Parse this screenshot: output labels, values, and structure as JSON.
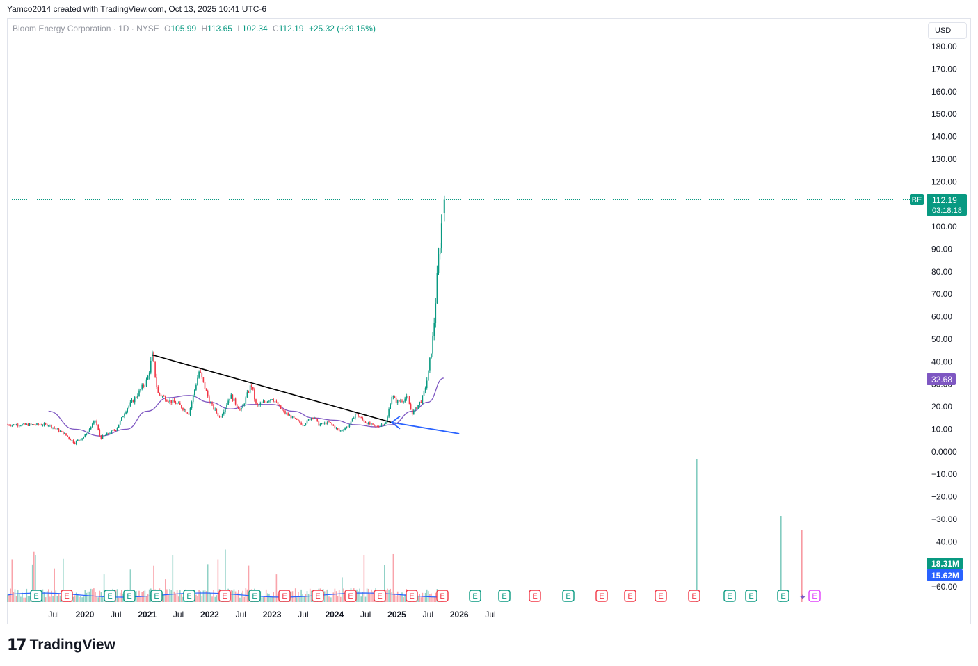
{
  "header": {
    "attribution": "Yamco2014 created with TradingView.com, Oct 13, 2025 10:41 UTC-6"
  },
  "legend": {
    "symbol_line": "Bloom Energy Corporation · 1D · NYSE",
    "o_label": "O",
    "o_value": "105.99",
    "h_label": "H",
    "h_value": "113.65",
    "l_label": "L",
    "l_value": "102.34",
    "c_label": "C",
    "c_value": "112.19",
    "change": "+25.32 (+29.15%)"
  },
  "currency": "USD",
  "price_tag": {
    "symbol": "BE",
    "price": "112.19",
    "countdown": "03:18:18"
  },
  "ma_tag": "32.68",
  "volume_tags": [
    "18.31M",
    "15.62M"
  ],
  "brand": {
    "logo": "17",
    "name": "TradingView"
  },
  "colors": {
    "up": "#089981",
    "down": "#f23645",
    "ma": "#7e57c2",
    "trendline": "#000000",
    "breakout_line": "#2962ff",
    "grid_text": "#131722",
    "volume_ma": "#2962ff"
  },
  "chart_data": {
    "type": "candlestick",
    "title": "Bloom Energy Corporation",
    "y_axis": {
      "range": [
        -60,
        180
      ],
      "tick_labels": [
        "180.00",
        "170.00",
        "160.00",
        "150.00",
        "140.00",
        "130.00",
        "120.00",
        "110.00",
        "100.00",
        "90.00",
        "80.00",
        "70.00",
        "60.00",
        "50.00",
        "40.00",
        "30.00",
        "20.00",
        "10.00",
        "0.0000",
        "−10.00",
        "−20.00",
        "−30.00",
        "−40.00",
        "−50.00",
        "−60.00"
      ]
    },
    "x_axis": {
      "tick_labels": [
        "Jul",
        "2020",
        "Jul",
        "2021",
        "Jul",
        "2022",
        "Jul",
        "2023",
        "Jul",
        "2024",
        "Jul",
        "2025",
        "Jul",
        "2026",
        "Jul"
      ],
      "bold_labels": [
        "2020",
        "2021",
        "2022",
        "2023",
        "2024",
        "2025",
        "2026"
      ],
      "range": [
        "2019-06",
        "2026-07"
      ]
    },
    "price_series": {
      "name": "BE",
      "date": [
        "2019-06",
        "2019-09",
        "2019-11",
        "2020-01",
        "2020-03",
        "2020-04",
        "2020-07",
        "2020-09",
        "2020-11",
        "2021-01",
        "2021-02",
        "2021-03",
        "2021-05",
        "2021-07",
        "2021-09",
        "2021-11",
        "2022-01",
        "2022-03",
        "2022-05",
        "2022-07",
        "2022-09",
        "2022-10",
        "2023-01",
        "2023-03",
        "2023-05",
        "2023-07",
        "2023-09",
        "2023-10",
        "2023-12",
        "2024-02",
        "2024-04",
        "2024-05",
        "2024-07",
        "2024-09",
        "2024-11",
        "2024-12",
        "2025-01",
        "2025-03",
        "2025-04",
        "2025-06",
        "2025-07",
        "2025-08",
        "2025-09",
        "2025-10"
      ],
      "close": [
        12,
        8,
        4,
        7,
        14,
        6,
        10,
        19,
        25,
        32,
        43,
        26,
        23,
        21,
        17,
        36,
        22,
        15,
        25,
        18,
        30,
        20,
        24,
        18,
        15,
        12,
        16,
        12,
        13,
        9,
        12,
        17,
        13,
        11,
        13,
        25,
        22,
        24,
        17,
        24,
        34,
        52,
        85,
        112.19
      ]
    },
    "ma_series": {
      "name": "MA",
      "date": [
        "2019-06",
        "2019-11",
        "2020-04",
        "2020-09",
        "2021-01",
        "2021-05",
        "2021-09",
        "2022-01",
        "2022-05",
        "2022-09",
        "2023-01",
        "2023-05",
        "2023-09",
        "2024-01",
        "2024-05",
        "2024-09",
        "2024-12",
        "2025-04",
        "2025-07",
        "2025-10"
      ],
      "value": [
        18,
        10,
        7,
        10,
        18,
        24,
        25,
        22,
        19,
        21,
        21,
        18,
        15,
        14,
        12,
        11,
        12,
        18,
        22,
        32.68
      ]
    },
    "annotations": {
      "descending_trendline": {
        "from": [
          "2021-02",
          43
        ],
        "to": [
          "2024-12",
          13
        ]
      },
      "breakout_line": {
        "from": [
          "2024-12",
          13
        ],
        "to": [
          "2026-01",
          8
        ]
      },
      "earnings_markers": {
        "label": "E",
        "count": 25
      }
    },
    "volume": {
      "labels": [
        "18.31M",
        "15.62M"
      ],
      "tall_spikes": [
        {
          "date": "2024-12",
          "value": "largest"
        },
        {
          "date": "2025-08",
          "value": "high"
        },
        {
          "date": "2025-09",
          "value": "high"
        }
      ]
    },
    "grid": false,
    "legend_position": "top-left"
  }
}
